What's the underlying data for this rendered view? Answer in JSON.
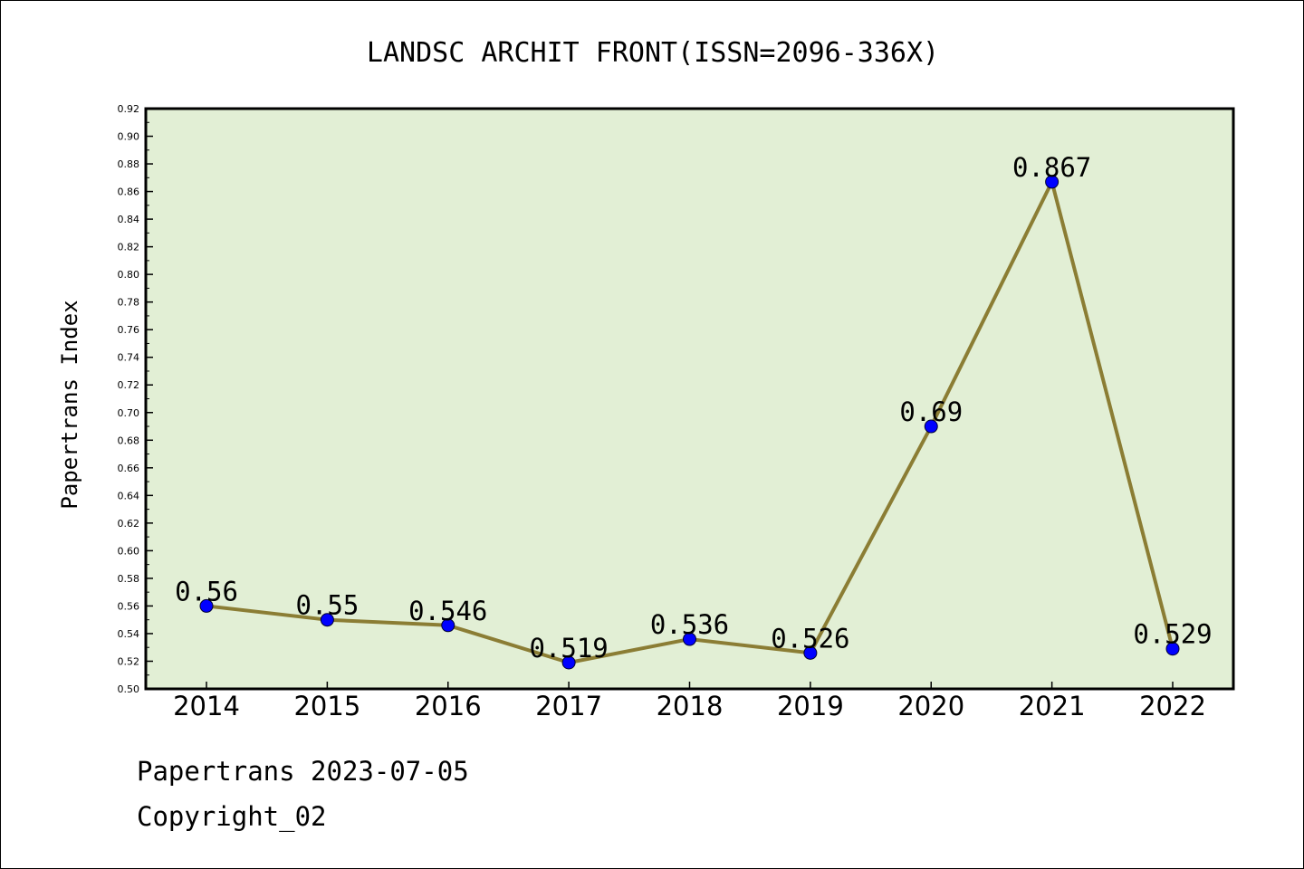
{
  "chart_data": {
    "type": "line",
    "title": "LANDSC ARCHIT FRONT(ISSN=2096-336X)",
    "xlabel": "",
    "ylabel": "Papertrans Index",
    "categories": [
      "2014",
      "2015",
      "2016",
      "2017",
      "2018",
      "2019",
      "2020",
      "2021",
      "2022"
    ],
    "series": [
      {
        "values": [
          0.56,
          0.55,
          0.546,
          0.519,
          0.536,
          0.526,
          0.69,
          0.867,
          0.529
        ],
        "labels": [
          "0.56",
          "0.55",
          "0.546",
          "0.519",
          "0.536",
          "0.526",
          "0.69",
          "0.867",
          "0.529"
        ]
      }
    ],
    "ylim": [
      0.5,
      0.92
    ],
    "yticks": [
      "0.50",
      "0.52",
      "0.54",
      "0.56",
      "0.58",
      "0.60",
      "0.62",
      "0.64",
      "0.66",
      "0.68",
      "0.70",
      "0.72",
      "0.74",
      "0.76",
      "0.78",
      "0.80",
      "0.82",
      "0.84",
      "0.86",
      "0.88",
      "0.90",
      "0.92"
    ],
    "grid": false,
    "colors": {
      "plot_background": "#e2efd5",
      "line": "#8b7d34",
      "marker": "#0000ff"
    }
  },
  "footer": {
    "line1": "Papertrans 2023-07-05",
    "line2": "Copyright_02"
  }
}
